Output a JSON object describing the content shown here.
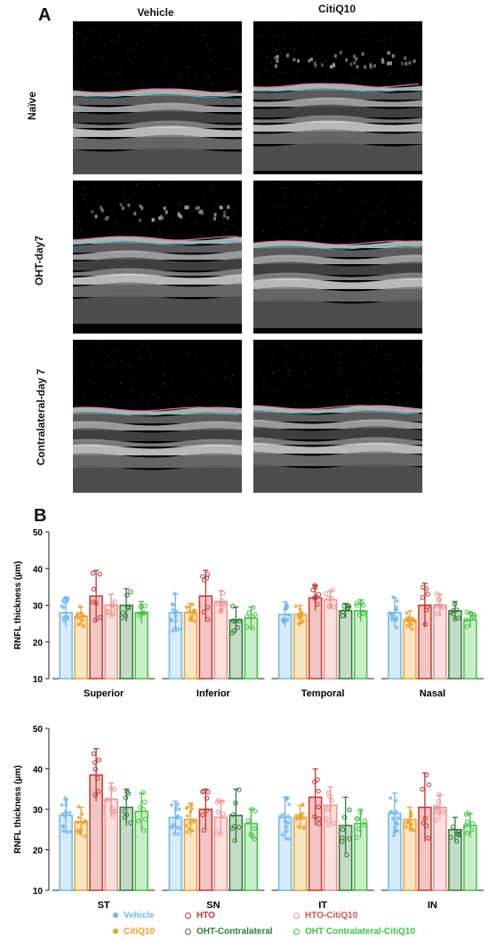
{
  "panel_a": {
    "letter": "A",
    "columns": [
      "Vehicle",
      "CitiQ10"
    ],
    "rows": [
      "Naïve",
      "OHT-day7",
      "Contralateral-day 7"
    ]
  },
  "panel_b": {
    "letter": "B"
  },
  "colors": {
    "Vehicle": "#6fb6ef",
    "CitiQ10": "#eaa12c",
    "HTO": "#c8332f",
    "HTO-CitiQ10": "#ef8f8b",
    "OHT-Contralateral": "#2f7a36",
    "OHT Contralateral-CitiQ10": "#3fc23f"
  },
  "chart_data": [
    {
      "type": "bar",
      "ylabel": "RNFL thickness (µm)",
      "ylim": [
        10,
        50
      ],
      "yticks": [
        10,
        20,
        30,
        40,
        50
      ],
      "categories": [
        "Superior",
        "Inferior",
        "Temporal",
        "Nasal"
      ],
      "series": [
        {
          "name": "Vehicle",
          "values": [
            28,
            28,
            27.5,
            28
          ],
          "errors": [
            4,
            5,
            3.5,
            4
          ]
        },
        {
          "name": "CitiQ10",
          "values": [
            27,
            28,
            27.5,
            26
          ],
          "errors": [
            2.5,
            2.5,
            2.5,
            2.5
          ]
        },
        {
          "name": "HTO",
          "values": [
            32.5,
            32.5,
            32,
            30
          ],
          "errors": [
            7,
            7,
            3.5,
            6
          ]
        },
        {
          "name": "HTO-CitiQ10",
          "values": [
            30,
            31,
            31.5,
            30
          ],
          "errors": [
            3,
            3,
            2.5,
            3
          ]
        },
        {
          "name": "OHT-Contralateral",
          "values": [
            30,
            26,
            28.5,
            28.5
          ],
          "errors": [
            4.5,
            3.5,
            2,
            2.5
          ]
        },
        {
          "name": "OHT Contralateral-CitiQ10",
          "values": [
            28,
            26.5,
            28.5,
            26
          ],
          "errors": [
            3,
            3,
            3,
            2
          ]
        }
      ]
    },
    {
      "type": "bar",
      "ylabel": "RNFL thickness (µm)",
      "ylim": [
        10,
        50
      ],
      "yticks": [
        10,
        20,
        30,
        40,
        50
      ],
      "categories": [
        "ST",
        "SN",
        "IT",
        "IN"
      ],
      "series": [
        {
          "name": "Vehicle",
          "values": [
            28.5,
            28,
            28,
            29
          ],
          "errors": [
            4,
            4,
            5,
            5
          ]
        },
        {
          "name": "CitiQ10",
          "values": [
            27,
            27.5,
            28,
            27.5
          ],
          "errors": [
            3.5,
            4,
            3,
            3
          ]
        },
        {
          "name": "HTO",
          "values": [
            38.5,
            30,
            33,
            30.5
          ],
          "errors": [
            6.5,
            5,
            7,
            8.5
          ]
        },
        {
          "name": "HTO-CitiQ10",
          "values": [
            32.5,
            28,
            31,
            30.5
          ],
          "errors": [
            4,
            4,
            4.5,
            3
          ]
        },
        {
          "name": "OHT-Contralateral",
          "values": [
            30.5,
            28.5,
            26,
            25
          ],
          "errors": [
            4.5,
            6.5,
            7,
            3
          ]
        },
        {
          "name": "OHT Contralateral-CitiQ10",
          "values": [
            29.5,
            26.5,
            26.5,
            26
          ],
          "errors": [
            4.5,
            3.5,
            3.5,
            3
          ]
        }
      ]
    }
  ],
  "legend": {
    "items": [
      "Vehicle",
      "HTO",
      "HTO-CitiQ10",
      "CitiQ10",
      "OHT-Contralateral",
      "OHT Contralateral-CitiQ10"
    ]
  }
}
